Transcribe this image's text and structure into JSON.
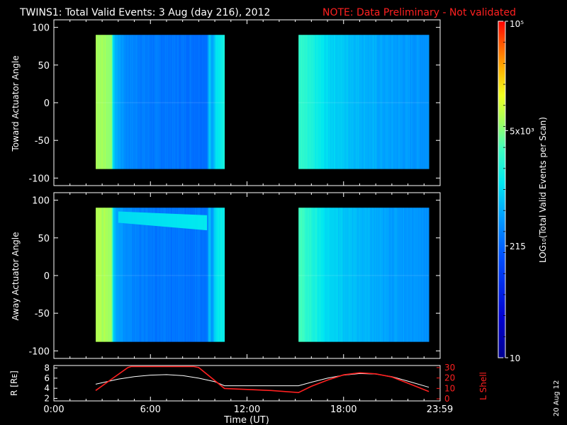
{
  "header": {
    "title": "TWINS1: Total Valid Events:  3 Aug (day 216), 2012",
    "note": "NOTE: Data Preliminary - Not validated"
  },
  "side_date": "20 Aug 12",
  "colors": {
    "note": "#ff2020",
    "lshell": "#ff2020",
    "radius": "#ffffff",
    "axes": "#ffffff"
  },
  "chart_data": [
    {
      "type": "heatmap",
      "panel": "toward",
      "ylabel": "Toward Actuator Angle",
      "ylim": [
        -110,
        110
      ],
      "yticks": [
        100,
        50,
        0,
        -50,
        -100
      ],
      "xlim_hours": [
        0,
        24
      ],
      "blocks": [
        {
          "start_hour": 2.6,
          "end_hour": 10.6,
          "angle_range": [
            -88,
            90
          ]
        },
        {
          "start_hour": 15.2,
          "end_hour": 23.3,
          "angle_range": [
            -88,
            90
          ]
        }
      ],
      "intensity_profile_log10": [
        [
          2.6,
          3.85
        ],
        [
          3.6,
          3.75
        ],
        [
          3.7,
          2.9
        ],
        [
          3.9,
          2.75
        ],
        [
          4.5,
          2.55
        ],
        [
          6.0,
          2.45
        ],
        [
          8.0,
          2.42
        ],
        [
          9.5,
          2.4
        ],
        [
          9.7,
          3.0
        ],
        [
          9.8,
          2.6
        ],
        [
          10.1,
          3.1
        ],
        [
          10.6,
          3.2
        ],
        [
          15.2,
          3.4
        ],
        [
          16.2,
          3.2
        ],
        [
          17.0,
          3.0
        ],
        [
          18.5,
          2.85
        ],
        [
          20.5,
          2.7
        ],
        [
          23.3,
          2.6
        ]
      ]
    },
    {
      "type": "heatmap",
      "panel": "away",
      "ylabel": "Away Actuator Angle",
      "ylim": [
        -110,
        110
      ],
      "yticks": [
        100,
        50,
        0,
        -50,
        -100
      ],
      "xlim_hours": [
        0,
        24
      ],
      "blocks": [
        {
          "start_hour": 2.6,
          "end_hour": 10.6,
          "angle_range": [
            -88,
            90
          ]
        },
        {
          "start_hour": 15.2,
          "end_hour": 23.3,
          "angle_range": [
            -88,
            90
          ]
        }
      ],
      "intensity_profile_log10": [
        [
          2.6,
          3.9
        ],
        [
          3.6,
          3.8
        ],
        [
          3.7,
          2.9
        ],
        [
          3.9,
          2.75
        ],
        [
          4.5,
          2.55
        ],
        [
          6.0,
          2.45
        ],
        [
          8.0,
          2.42
        ],
        [
          9.5,
          2.4
        ],
        [
          9.7,
          3.0
        ],
        [
          9.8,
          2.6
        ],
        [
          10.1,
          3.1
        ],
        [
          10.6,
          3.2
        ],
        [
          15.2,
          3.5
        ],
        [
          16.2,
          3.25
        ],
        [
          17.0,
          3.0
        ],
        [
          18.5,
          2.85
        ],
        [
          20.5,
          2.7
        ],
        [
          23.3,
          2.6
        ]
      ],
      "enhanced_band": {
        "start_hour": 4.0,
        "end_hour": 9.5,
        "angle_start": [
          70,
          85
        ],
        "angle_end": [
          60,
          80
        ],
        "log10": 2.95
      }
    },
    {
      "type": "colorbar",
      "label": "LOG₁₀(Total Valid Events per Scan)",
      "range_log10": [
        1,
        5
      ],
      "ticks": [
        {
          "label": "10",
          "value": 1
        },
        {
          "label": "215",
          "value": 2.33
        },
        {
          "label": "5x10³",
          "value": 3.7
        },
        {
          "label": "10⁵",
          "value": 5
        }
      ]
    },
    {
      "type": "line",
      "panel": "orbit",
      "xlabel": "Time (UT)",
      "x_tick_labels": [
        "0:00",
        "6:00",
        "12:00",
        "18:00",
        "23:59"
      ],
      "x_tick_hours": [
        0,
        6,
        12,
        18,
        23.98
      ],
      "xlim_hours": [
        0,
        24
      ],
      "left_axis": {
        "label": "R [Rᴇ]",
        "ticks": [
          "8",
          "6",
          "4",
          "2"
        ],
        "tick_values": [
          8,
          6,
          4,
          2
        ],
        "ylim": [
          1.5,
          8.5
        ]
      },
      "right_axis": {
        "label": "L Shell",
        "ticks": [
          "30",
          "20",
          "10",
          "0"
        ],
        "tick_values": [
          30,
          20,
          10,
          0
        ],
        "ylim": [
          -2,
          32
        ]
      },
      "series": [
        {
          "name": "R",
          "axis": "left",
          "x": [
            2.6,
            4,
            5,
            6,
            7,
            8,
            9,
            10,
            10.6,
            12,
            15.2,
            16,
            17,
            18,
            19,
            20,
            21,
            22,
            23.3
          ],
          "y": [
            4.8,
            5.8,
            6.3,
            6.6,
            6.7,
            6.5,
            6.0,
            5.3,
            4.5,
            4.5,
            4.5,
            5.2,
            6.0,
            6.6,
            6.9,
            6.8,
            6.3,
            5.4,
            4.2
          ]
        },
        {
          "name": "L Shell",
          "axis": "right",
          "x": [
            2.6,
            3.5,
            4.6,
            4.8,
            8.7,
            9,
            10.6,
            12,
            13.5,
            15.2,
            16,
            17,
            18,
            19,
            20,
            21,
            22,
            23.3
          ],
          "y": [
            8,
            18,
            30,
            31,
            31,
            30,
            10,
            9,
            8,
            6,
            12,
            18,
            23,
            25,
            24,
            21,
            15,
            7
          ]
        }
      ]
    }
  ]
}
